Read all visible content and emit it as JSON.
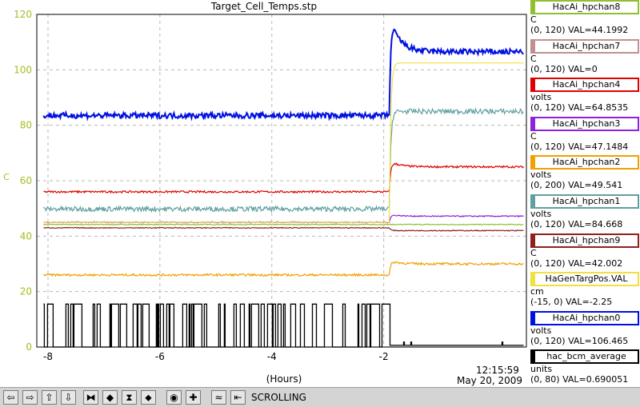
{
  "chart_data": {
    "type": "line",
    "title": "Target_Cell_Temps.stp",
    "xlabel": "(Hours)",
    "ylabel": "C",
    "xlim": [
      -8.2,
      0.55
    ],
    "ylim": [
      0,
      120
    ],
    "x_ticks": [
      -8,
      -6,
      -4,
      -2
    ],
    "y_ticks": [
      0,
      20,
      40,
      60,
      80,
      100,
      120
    ],
    "grid": true,
    "axis_color": "#a0c020",
    "time_label": "12:15:59",
    "date_label": "May 20, 2009",
    "step_time": -1.9,
    "series": [
      {
        "name": "HacAi_hpchan8",
        "units": "C",
        "range": "(0, 120) VAL=44.1992",
        "color": "#90c030",
        "before": 44.2,
        "after": 44.2,
        "noise": 0.15,
        "settle": 0
      },
      {
        "name": "HacAi_hpchan7",
        "units": "C",
        "range": "(0, 120) VAL=0",
        "color": "#c09090",
        "before": 0,
        "after": 0,
        "noise": 0,
        "settle": 0
      },
      {
        "name": "HacAi_hpchan4",
        "units": "volts",
        "range": "(0, 120) VAL=64.8535",
        "color": "#e00000",
        "before": 56,
        "after": 65,
        "noise": 0.35,
        "settle": 0.25
      },
      {
        "name": "HacAi_hpchan3",
        "units": "C",
        "range": "(0, 120) VAL=47.1484",
        "color": "#9020e0",
        "before": 45,
        "after": 47.2,
        "noise": 0.2,
        "settle": 0.3
      },
      {
        "name": "HacAi_hpchan2",
        "units": "volts",
        "range": "(0, 200) VAL=49.541",
        "color": "#f0a000",
        "before": 26,
        "after": 30,
        "noise": 0.4,
        "settle": 0.3
      },
      {
        "name": "HacAi_hpchan1",
        "units": "volts",
        "range": "(0, 120) VAL=84.668",
        "color": "#60a0a0",
        "before": 49.8,
        "after": 85,
        "noise": 0.9,
        "settle": 0
      },
      {
        "name": "HacAi_hpchan9",
        "units": "C",
        "range": "(0, 120) VAL=42.002",
        "color": "#902020",
        "before": 43,
        "after": 42,
        "noise": 0.15,
        "settle": 0
      },
      {
        "name": "HaGenTargPos.VAL",
        "units": "cm",
        "range": "(-15, 0) VAL=-2.25",
        "color": "#f0e040",
        "before": 45,
        "after": 102.5,
        "noise": 0,
        "settle": 0
      },
      {
        "name": "HacAi_hpchan0",
        "units": "volts",
        "range": "(0, 120) VAL=106.465",
        "color": "#0010e0",
        "before": 83.5,
        "after": 106.5,
        "noise": 1.0,
        "settle": 0.6
      },
      {
        "name": "hac_bcm_average",
        "units": "units",
        "range": "(0, 80) VAL=0.690051",
        "color": "#000000",
        "before": 15.5,
        "after": 0.6,
        "noise": 0,
        "settle": 0
      }
    ]
  },
  "toolbar": {
    "status": "SCROLLING",
    "buttons": [
      {
        "icon": "arrow-left-icon",
        "glyph": "⇦"
      },
      {
        "icon": "arrow-right-icon",
        "glyph": "⇨"
      },
      {
        "icon": "arrow-up-icon",
        "glyph": "⇧"
      },
      {
        "icon": "arrow-down-icon",
        "glyph": "⇩"
      },
      {
        "icon": "zoom-in-horizontal-icon",
        "glyph": "⧓"
      },
      {
        "icon": "zoom-out-horizontal-icon",
        "glyph": "◆"
      },
      {
        "icon": "zoom-in-vertical-icon",
        "glyph": "⧗"
      },
      {
        "icon": "zoom-out-vertical-icon",
        "glyph": "⬥"
      },
      {
        "icon": "target-icon",
        "glyph": "◉"
      },
      {
        "icon": "plus-icon",
        "glyph": "✚"
      },
      {
        "icon": "autoscale-icon",
        "glyph": "≈"
      },
      {
        "icon": "scroll-icon",
        "glyph": "⇤"
      }
    ]
  }
}
